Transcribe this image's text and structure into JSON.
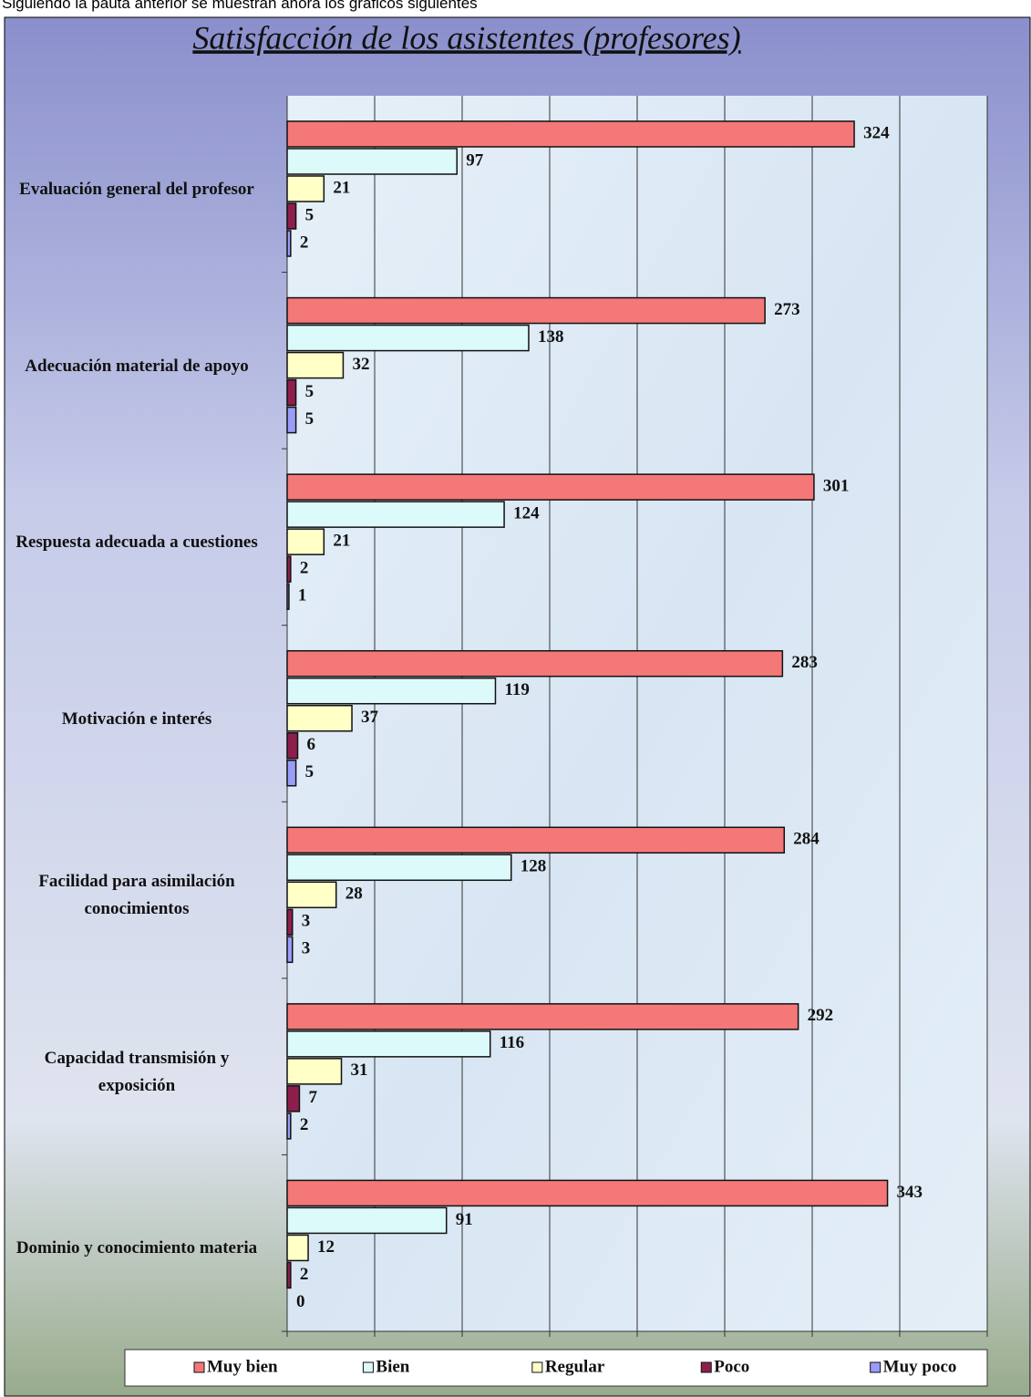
{
  "intro": "Siguiendo la pauta anterior se muestran ahora los gráficos siguientes",
  "chart_data": {
    "type": "hbar",
    "title": "Satisfacción de los asistentes (profesores)",
    "categories": [
      "Evaluación general del profesor",
      "Adecuación material de apoyo",
      "Respuesta adecuada a cuestiones",
      "Motivación e interés",
      "Facilidad para asimilación conocimientos",
      "Capacidad transmisión y exposición",
      "Dominio y conocimiento materia"
    ],
    "series": [
      {
        "name": "Muy bien",
        "color": "#f47878",
        "values": [
          324,
          273,
          301,
          283,
          284,
          292,
          343
        ]
      },
      {
        "name": "Bien",
        "color": "#ddfafa",
        "values": [
          97,
          138,
          124,
          119,
          128,
          116,
          91
        ]
      },
      {
        "name": "Regular",
        "color": "#ffffc6",
        "values": [
          21,
          32,
          21,
          37,
          28,
          31,
          12
        ]
      },
      {
        "name": "Poco",
        "color": "#8e1f4c",
        "values": [
          5,
          5,
          2,
          6,
          3,
          7,
          2
        ]
      },
      {
        "name": "Muy poco",
        "color": "#9a9cf8",
        "values": [
          2,
          5,
          1,
          5,
          3,
          2,
          0
        ]
      }
    ],
    "xlim": [
      0,
      400
    ],
    "xticks": [
      0,
      50,
      100,
      150,
      200,
      250,
      300,
      350,
      400
    ],
    "grid": true,
    "legend": "bottom"
  }
}
